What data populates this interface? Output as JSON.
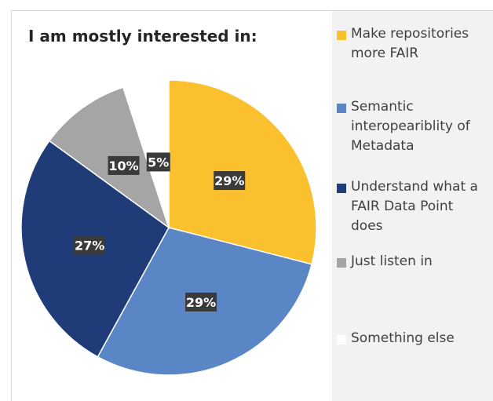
{
  "chart_data": {
    "type": "pie",
    "title": "I am mostly interested in:",
    "categories": [
      "Make repositories more FAIR",
      "Semantic interopeariblity of Metadata",
      "Understand what a FAIR Data Point does",
      "Just listen in",
      "Something else"
    ],
    "values": [
      29,
      29,
      27,
      10,
      5
    ],
    "data_labels": [
      "29%",
      "29%",
      "27%",
      "10%",
      "5%"
    ],
    "colors": [
      "#fbc02d",
      "#5b86c5",
      "#1f3b78",
      "#a5a5a5",
      "#ffffff"
    ],
    "legend_position": "right"
  },
  "legend": {
    "items": [
      "Make repositories more FAIR",
      "Semantic interopeariblity of Metadata",
      "Understand what a FAIR Data Point does",
      "Just listen in",
      "Something else"
    ]
  }
}
